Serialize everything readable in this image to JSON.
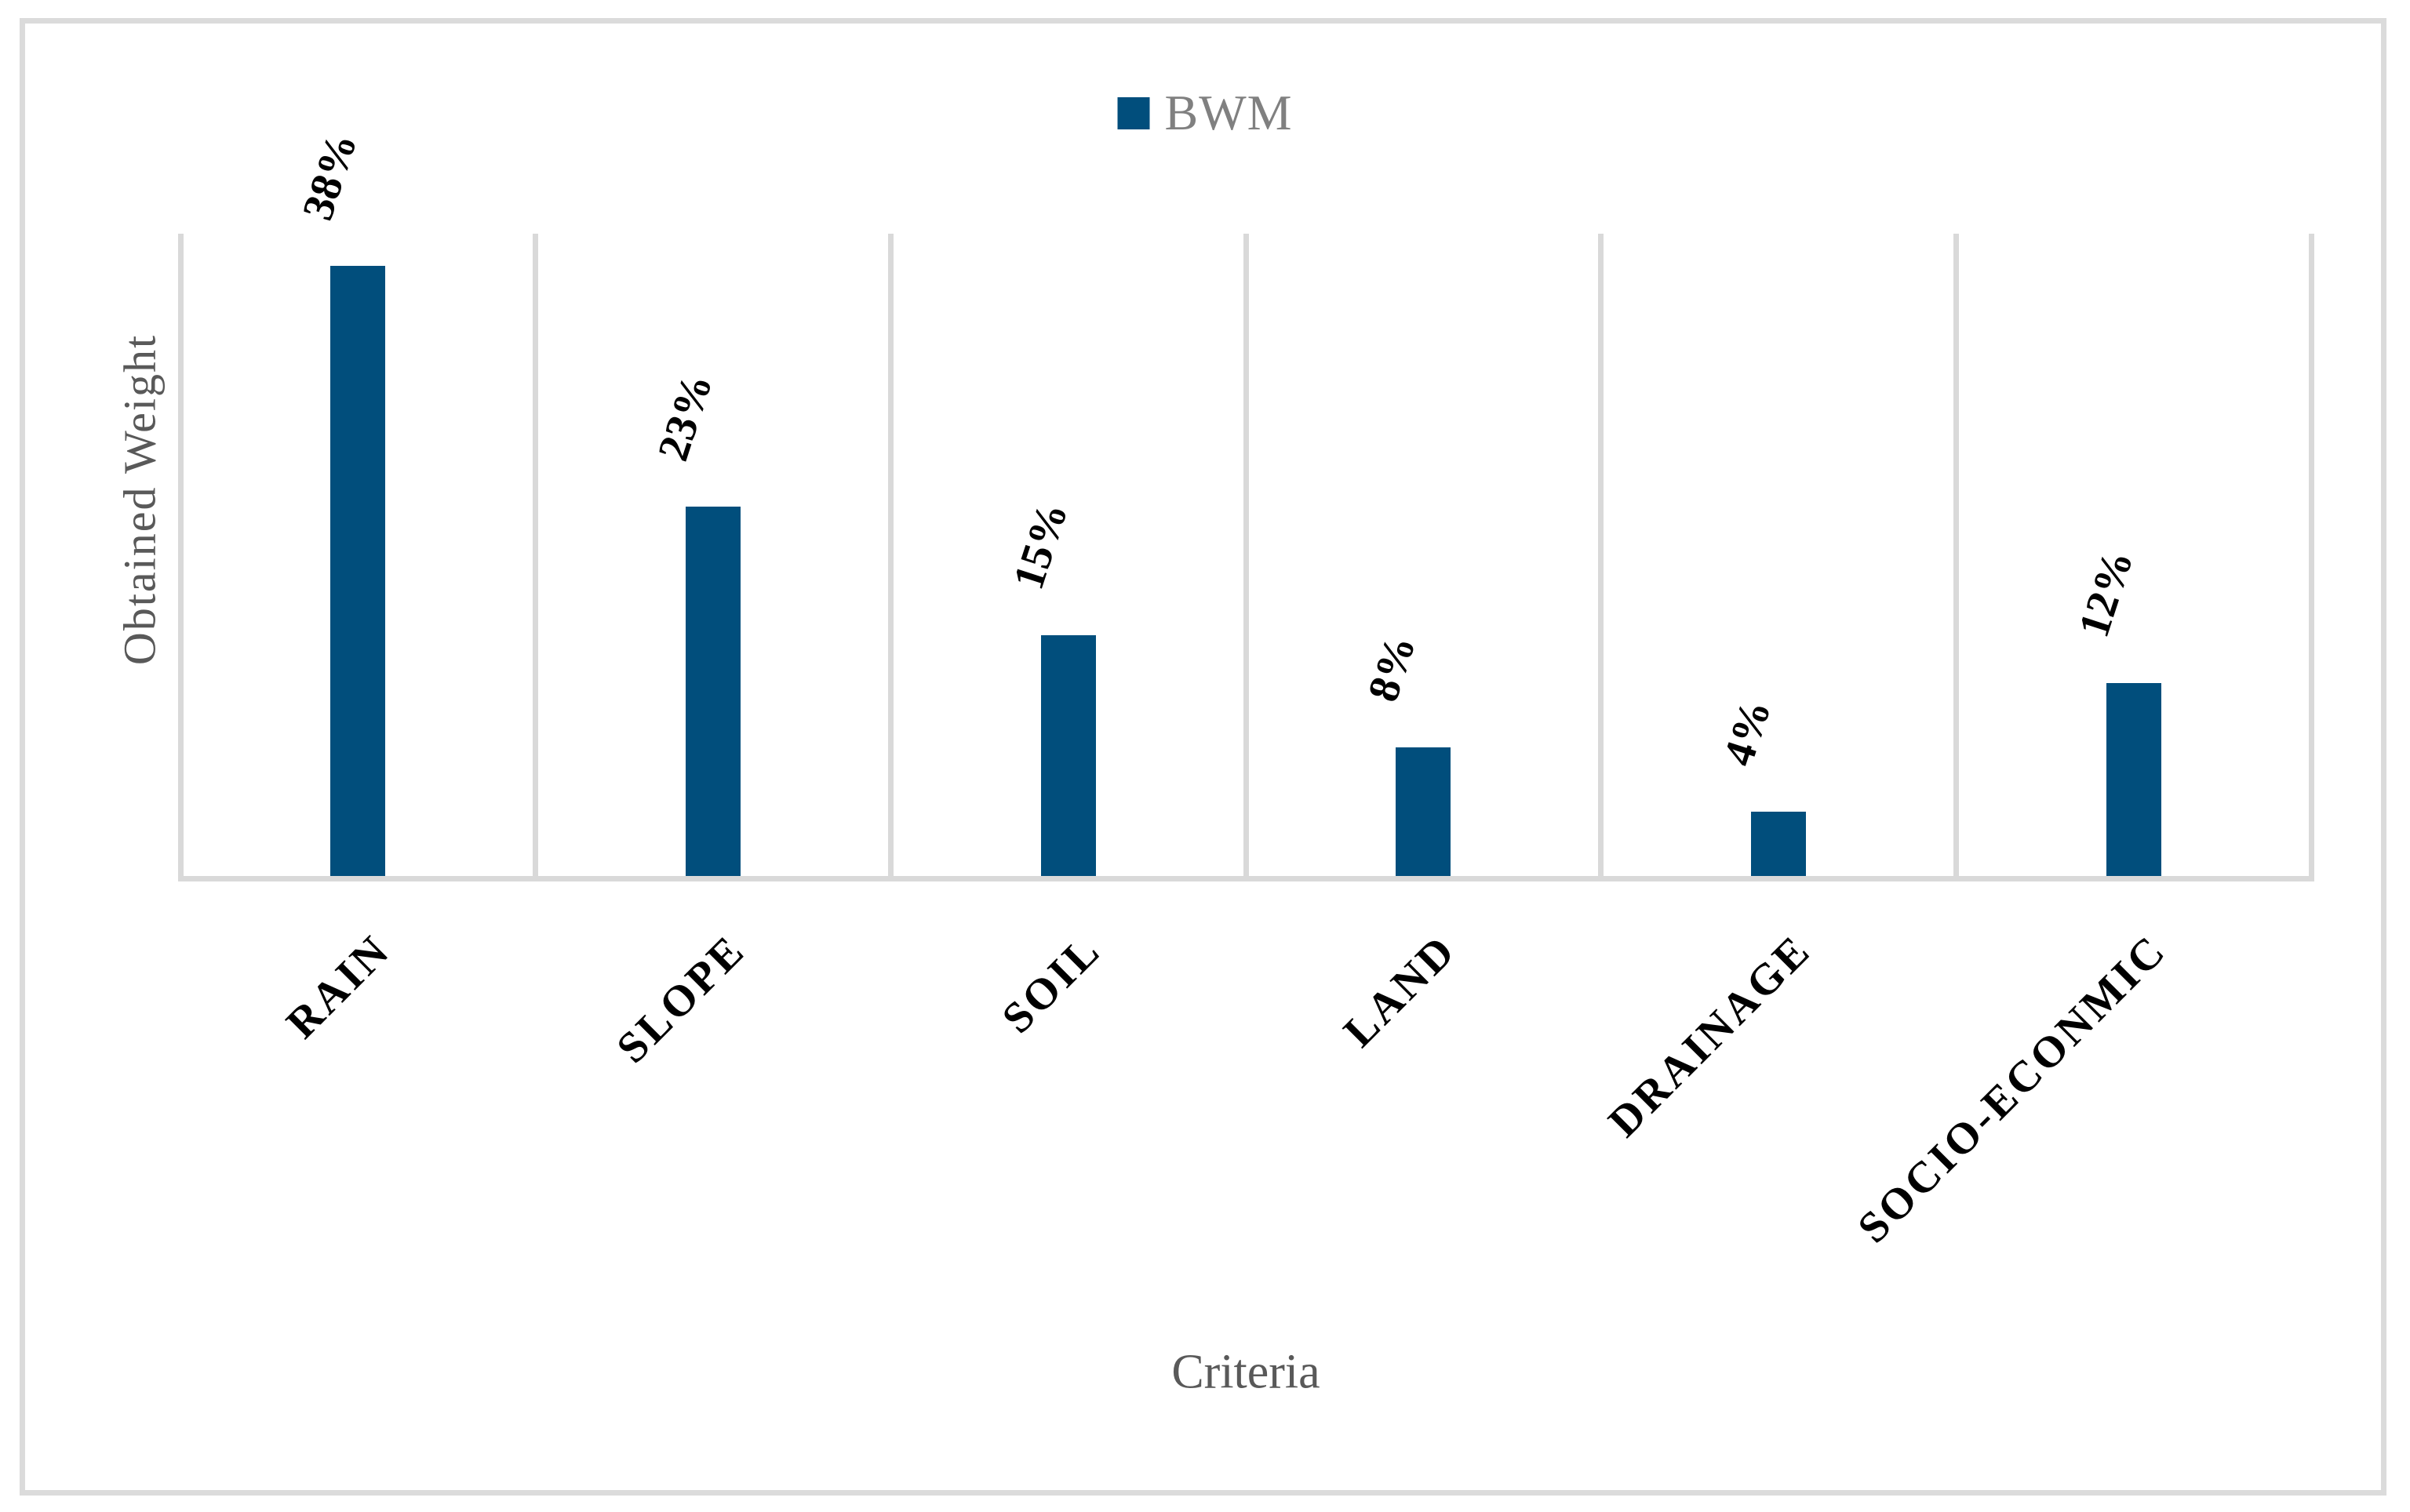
{
  "chart_data": {
    "type": "bar",
    "legend": {
      "entries": [
        "BWM"
      ],
      "position": "top-center"
    },
    "categories": [
      "RAIN",
      "SLOPE",
      "SOIL",
      "LAND",
      "DRAINAGE",
      "SOCIO-ECONMIC"
    ],
    "series": [
      {
        "name": "BWM",
        "values": [
          0.38,
          0.23,
          0.15,
          0.08,
          0.04,
          0.12
        ]
      }
    ],
    "data_labels": [
      "38%",
      "23%",
      "15%",
      "8%",
      "4%",
      "12%"
    ],
    "xlabel": "Criteria",
    "ylabel": "Obtained Weight",
    "ylim": [
      0,
      0.4
    ],
    "grid": "vertical category separators only, no y-axis ticks or values shown",
    "colors": {
      "bar": "#014E7C",
      "grid": "#D9D9D9",
      "frame": "#DBDBDB",
      "axis_title": "#595959",
      "legend_text": "#808080",
      "label_text": "#000000",
      "background": "#FFFFFF"
    }
  }
}
